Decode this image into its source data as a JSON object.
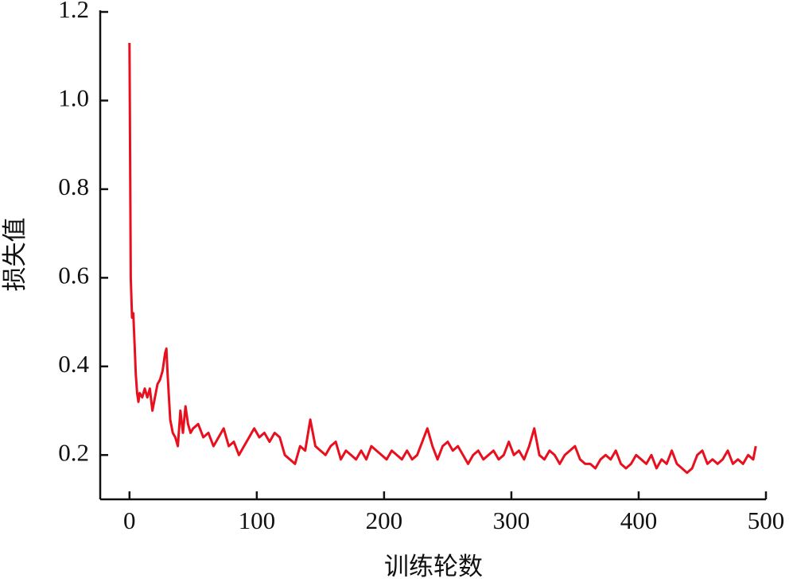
{
  "chart_data": {
    "type": "line",
    "x_label": "训练轮数",
    "y_label": "损失值",
    "color": "#e8101e",
    "xlim": [
      -23,
      500
    ],
    "xticks": [
      0,
      100,
      200,
      300,
      400,
      500
    ],
    "ylim": [
      0.1,
      1.2
    ],
    "yticks": [
      0.2,
      0.4,
      0.6,
      0.8,
      {
        "value": 1,
        "label": "1.0"
      },
      1.2
    ],
    "grid": false,
    "x": [
      0,
      1,
      2,
      3,
      4,
      5,
      6,
      7,
      8,
      10,
      12,
      14,
      16,
      18,
      20,
      22,
      24,
      26,
      28,
      29,
      30,
      32,
      34,
      36,
      38,
      40,
      42,
      44,
      46,
      48,
      50,
      54,
      58,
      62,
      66,
      70,
      74,
      78,
      82,
      86,
      90,
      94,
      98,
      102,
      106,
      110,
      114,
      118,
      122,
      126,
      130,
      134,
      138,
      142,
      146,
      150,
      154,
      158,
      162,
      166,
      170,
      174,
      178,
      182,
      186,
      190,
      194,
      198,
      202,
      206,
      210,
      214,
      218,
      222,
      226,
      230,
      234,
      238,
      242,
      246,
      250,
      254,
      258,
      262,
      266,
      270,
      274,
      278,
      282,
      286,
      290,
      294,
      298,
      302,
      306,
      310,
      314,
      318,
      322,
      326,
      330,
      334,
      338,
      342,
      346,
      350,
      354,
      358,
      362,
      366,
      370,
      374,
      378,
      382,
      386,
      390,
      394,
      398,
      402,
      406,
      410,
      414,
      418,
      422,
      426,
      430,
      434,
      438,
      442,
      446,
      450,
      454,
      458,
      462,
      466,
      470,
      474,
      478,
      482,
      486,
      490,
      492
    ],
    "values": [
      1.13,
      0.6,
      0.51,
      0.52,
      0.45,
      0.38,
      0.34,
      0.32,
      0.34,
      0.33,
      0.35,
      0.33,
      0.35,
      0.3,
      0.33,
      0.36,
      0.37,
      0.39,
      0.43,
      0.44,
      0.38,
      0.28,
      0.25,
      0.24,
      0.22,
      0.3,
      0.25,
      0.31,
      0.27,
      0.25,
      0.26,
      0.27,
      0.24,
      0.25,
      0.22,
      0.24,
      0.26,
      0.22,
      0.23,
      0.2,
      0.22,
      0.24,
      0.26,
      0.24,
      0.25,
      0.23,
      0.25,
      0.24,
      0.2,
      0.19,
      0.18,
      0.22,
      0.21,
      0.28,
      0.22,
      0.21,
      0.2,
      0.22,
      0.23,
      0.19,
      0.21,
      0.2,
      0.19,
      0.21,
      0.19,
      0.22,
      0.21,
      0.2,
      0.19,
      0.21,
      0.2,
      0.19,
      0.21,
      0.19,
      0.2,
      0.23,
      0.26,
      0.22,
      0.19,
      0.22,
      0.23,
      0.21,
      0.22,
      0.2,
      0.18,
      0.2,
      0.21,
      0.19,
      0.2,
      0.21,
      0.19,
      0.2,
      0.23,
      0.2,
      0.21,
      0.19,
      0.22,
      0.26,
      0.2,
      0.19,
      0.21,
      0.2,
      0.18,
      0.2,
      0.21,
      0.22,
      0.19,
      0.18,
      0.18,
      0.17,
      0.19,
      0.2,
      0.19,
      0.21,
      0.18,
      0.17,
      0.18,
      0.2,
      0.19,
      0.18,
      0.2,
      0.17,
      0.19,
      0.18,
      0.21,
      0.18,
      0.17,
      0.16,
      0.17,
      0.2,
      0.21,
      0.18,
      0.19,
      0.18,
      0.19,
      0.21,
      0.18,
      0.19,
      0.18,
      0.2,
      0.19,
      0.22
    ]
  }
}
